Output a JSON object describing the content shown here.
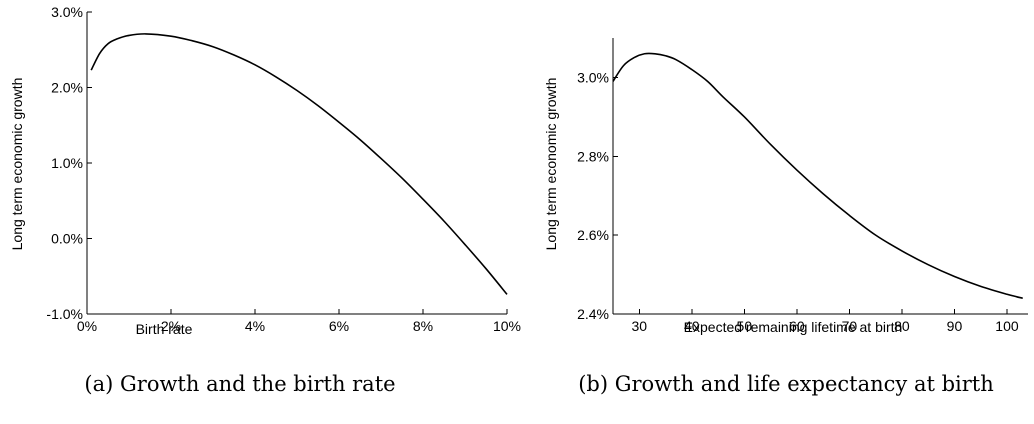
{
  "chart_data": [
    {
      "type": "line",
      "title": "",
      "caption": "(a) Growth and the birth rate",
      "xlabel": "Birth rate",
      "ylabel": "Long term economic growth",
      "xlim": [
        0,
        10
      ],
      "ylim": [
        -1.0,
        3.0
      ],
      "x_ticks": [
        0,
        2,
        4,
        6,
        8,
        10
      ],
      "x_tick_labels": [
        "0%",
        "2%",
        "4%",
        "6%",
        "8%",
        "10%"
      ],
      "y_ticks": [
        -1.0,
        0.0,
        1.0,
        2.0,
        3.0
      ],
      "y_tick_labels": [
        "-1.0%",
        "0.0%",
        "1.0%",
        "2.0%",
        "3.0%"
      ],
      "grid": false,
      "series": [
        {
          "x": [
            0.1,
            0.3,
            0.5,
            0.7,
            1.0,
            1.4,
            2.0,
            2.5,
            3.0,
            3.5,
            4.0,
            4.5,
            5.0,
            5.5,
            6.0,
            6.5,
            7.0,
            7.5,
            8.0,
            8.5,
            9.0,
            9.5,
            10.0
          ],
          "values": [
            2.23,
            2.45,
            2.58,
            2.64,
            2.69,
            2.71,
            2.68,
            2.62,
            2.54,
            2.43,
            2.3,
            2.14,
            1.96,
            1.76,
            1.54,
            1.31,
            1.06,
            0.8,
            0.52,
            0.23,
            -0.08,
            -0.4,
            -0.74
          ]
        }
      ]
    },
    {
      "type": "line",
      "title": "",
      "caption": "(b) Growth and life expectancy at birth",
      "xlabel": "Expected remaining lifetime at birth",
      "ylabel": "Long term economic growth",
      "xlim": [
        25,
        104
      ],
      "ylim": [
        2.4,
        3.1
      ],
      "x_ticks": [
        30,
        40,
        50,
        60,
        70,
        80,
        90,
        100
      ],
      "x_tick_labels": [
        "30",
        "40",
        "50",
        "60",
        "70",
        "80",
        "90",
        "100"
      ],
      "y_ticks": [
        2.4,
        2.6,
        2.8,
        3.0
      ],
      "y_tick_labels": [
        "2.4%",
        "2.6%",
        "2.8%",
        "3.0%"
      ],
      "grid": false,
      "series": [
        {
          "x": [
            25,
            27,
            29,
            31,
            33,
            35,
            37,
            40,
            43,
            46,
            50,
            55,
            60,
            65,
            70,
            75,
            80,
            85,
            90,
            95,
            100,
            103
          ],
          "values": [
            2.99,
            3.03,
            3.05,
            3.06,
            3.06,
            3.055,
            3.045,
            3.02,
            2.99,
            2.95,
            2.9,
            2.83,
            2.765,
            2.705,
            2.65,
            2.6,
            2.56,
            2.525,
            2.495,
            2.47,
            2.45,
            2.44
          ]
        }
      ]
    }
  ]
}
